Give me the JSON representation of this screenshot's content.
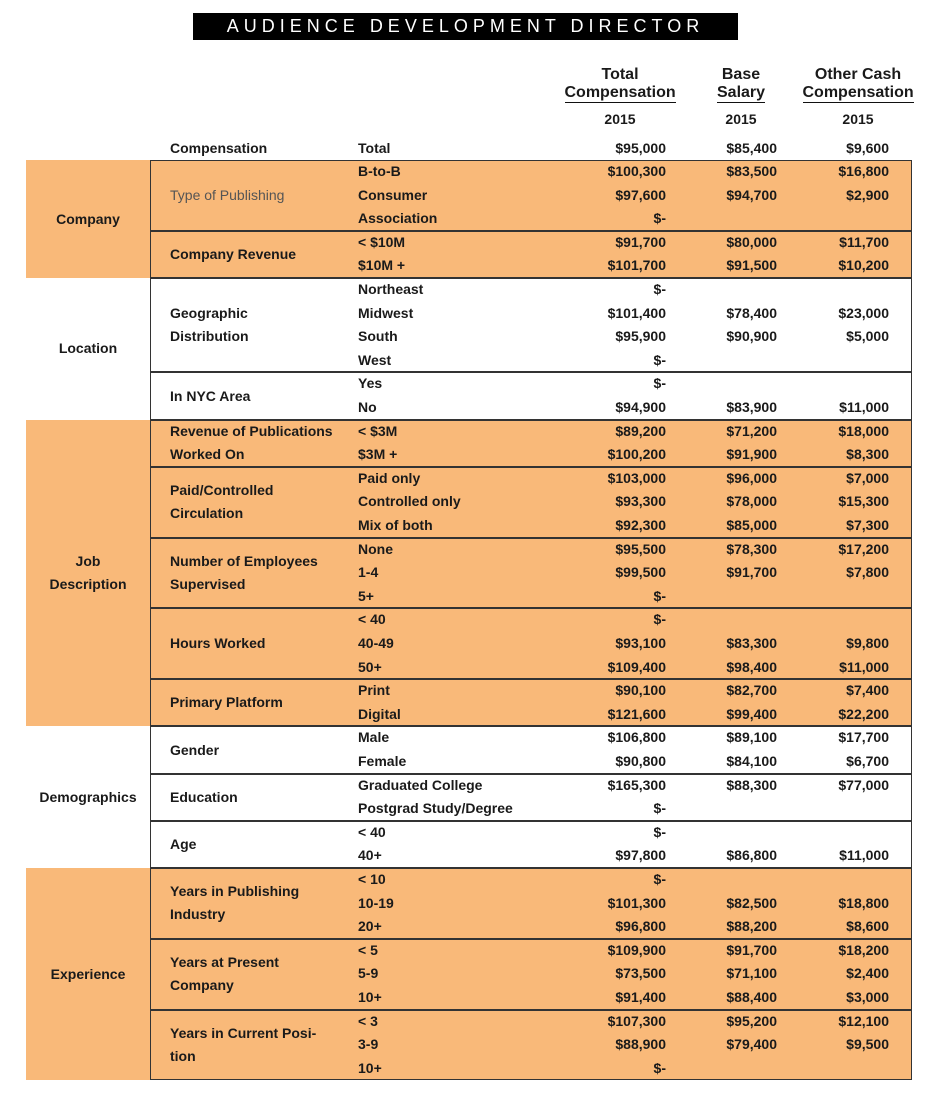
{
  "header": {
    "title": "AUDIENCE DEVELOPMENT DIRECTOR"
  },
  "columns": [
    {
      "name_lines": [
        "Total",
        "Compensation"
      ],
      "year": "2015"
    },
    {
      "name_lines": [
        "Base",
        "Salary"
      ],
      "year": "2015"
    },
    {
      "name_lines": [
        "Other Cash",
        "Compensation"
      ],
      "year": "2015"
    }
  ],
  "overall": {
    "category": "Compensation",
    "label": "Total",
    "cells": [
      "$95,000",
      "$85,400",
      "$9,600"
    ]
  },
  "sections": [
    {
      "label_lines": [
        "Company"
      ],
      "shaded": true,
      "groups": [
        {
          "label_lines": [
            "Type of Publishing"
          ],
          "muted": true,
          "rows": [
            {
              "label": "B-to-B",
              "cells": [
                "$100,300",
                "$83,500",
                "$16,800"
              ]
            },
            {
              "label": "Consumer",
              "cells": [
                "$97,600",
                "$94,700",
                "$2,900"
              ]
            },
            {
              "label": "Association",
              "cells": [
                "$-",
                null,
                null
              ]
            }
          ]
        },
        {
          "label_lines": [
            "Company Revenue"
          ],
          "rows": [
            {
              "label": "< $10M",
              "cells": [
                "$91,700",
                "$80,000",
                "$11,700"
              ]
            },
            {
              "label": "$10M +",
              "cells": [
                "$101,700",
                "$91,500",
                "$10,200"
              ]
            }
          ]
        }
      ]
    },
    {
      "label_lines": [
        "Location"
      ],
      "shaded": false,
      "groups": [
        {
          "label_lines": [
            "Geographic",
            "Distribution"
          ],
          "rows": [
            {
              "label": "Northeast",
              "cells": [
                "$-",
                null,
                null
              ]
            },
            {
              "label": "Midwest",
              "cells": [
                "$101,400",
                "$78,400",
                "$23,000"
              ]
            },
            {
              "label": "South",
              "cells": [
                "$95,900",
                "$90,900",
                "$5,000"
              ]
            },
            {
              "label": "West",
              "cells": [
                "$-",
                null,
                null
              ]
            }
          ]
        },
        {
          "label_lines": [
            "In NYC Area"
          ],
          "rows": [
            {
              "label": "Yes",
              "cells": [
                "$-",
                null,
                null
              ]
            },
            {
              "label": "No",
              "cells": [
                "$94,900",
                "$83,900",
                "$11,000"
              ]
            }
          ]
        }
      ]
    },
    {
      "label_lines": [
        "Job",
        "Description"
      ],
      "shaded": true,
      "groups": [
        {
          "label_lines": [
            "Revenue of Publications",
            "Worked On"
          ],
          "rows": [
            {
              "label": "< $3M",
              "cells": [
                "$89,200",
                "$71,200",
                "$18,000"
              ]
            },
            {
              "label": "$3M +",
              "cells": [
                "$100,200",
                "$91,900",
                "$8,300"
              ]
            }
          ]
        },
        {
          "label_lines": [
            "Paid/Controlled",
            "Circulation"
          ],
          "rows": [
            {
              "label": "Paid only",
              "cells": [
                "$103,000",
                "$96,000",
                "$7,000"
              ]
            },
            {
              "label": "Controlled only",
              "cells": [
                "$93,300",
                "$78,000",
                "$15,300"
              ]
            },
            {
              "label": "Mix of both",
              "cells": [
                "$92,300",
                "$85,000",
                "$7,300"
              ]
            }
          ]
        },
        {
          "label_lines": [
            "Number of Employees",
            "Supervised"
          ],
          "rows": [
            {
              "label": "None",
              "cells": [
                "$95,500",
                "$78,300",
                "$17,200"
              ]
            },
            {
              "label": "1-4",
              "cells": [
                "$99,500",
                "$91,700",
                "$7,800"
              ]
            },
            {
              "label": "5+",
              "cells": [
                "$-",
                null,
                null
              ]
            }
          ]
        },
        {
          "label_lines": [
            "Hours Worked"
          ],
          "rows": [
            {
              "label": "< 40",
              "cells": [
                "$-",
                null,
                null
              ]
            },
            {
              "label": "40-49",
              "cells": [
                "$93,100",
                "$83,300",
                "$9,800"
              ]
            },
            {
              "label": "50+",
              "cells": [
                "$109,400",
                "$98,400",
                "$11,000"
              ]
            }
          ]
        },
        {
          "label_lines": [
            "Primary Platform"
          ],
          "rows": [
            {
              "label": "Print",
              "cells": [
                "$90,100",
                "$82,700",
                "$7,400"
              ]
            },
            {
              "label": "Digital",
              "cells": [
                "$121,600",
                "$99,400",
                "$22,200"
              ]
            }
          ]
        }
      ]
    },
    {
      "label_lines": [
        "Demographics"
      ],
      "shaded": false,
      "groups": [
        {
          "label_lines": [
            "Gender"
          ],
          "rows": [
            {
              "label": "Male",
              "cells": [
                "$106,800",
                "$89,100",
                "$17,700"
              ]
            },
            {
              "label": "Female",
              "cells": [
                "$90,800",
                "$84,100",
                "$6,700"
              ]
            }
          ]
        },
        {
          "label_lines": [
            "Education"
          ],
          "rows": [
            {
              "label": "Graduated College",
              "cells": [
                "$165,300",
                "$88,300",
                "$77,000"
              ]
            },
            {
              "label": "Postgrad Study/Degree",
              "cells": [
                "$-",
                null,
                null
              ]
            }
          ]
        },
        {
          "label_lines": [
            "Age"
          ],
          "rows": [
            {
              "label": "< 40",
              "cells": [
                "$-",
                null,
                null
              ]
            },
            {
              "label": "40+",
              "cells": [
                "$97,800",
                "$86,800",
                "$11,000"
              ]
            }
          ]
        }
      ]
    },
    {
      "label_lines": [
        "Experience"
      ],
      "shaded": true,
      "groups": [
        {
          "label_lines": [
            "Years in Publishing",
            "Industry"
          ],
          "rows": [
            {
              "label": "< 10",
              "cells": [
                "$-",
                null,
                null
              ]
            },
            {
              "label": "10-19",
              "cells": [
                "$101,300",
                "$82,500",
                "$18,800"
              ]
            },
            {
              "label": "20+",
              "cells": [
                "$96,800",
                "$88,200",
                "$8,600"
              ]
            }
          ]
        },
        {
          "label_lines": [
            "Years at Present",
            "Company"
          ],
          "rows": [
            {
              "label": "< 5",
              "cells": [
                "$109,900",
                "$91,700",
                "$18,200"
              ]
            },
            {
              "label": "5-9",
              "cells": [
                "$73,500",
                "$71,100",
                "$2,400"
              ]
            },
            {
              "label": "10+",
              "cells": [
                "$91,400",
                "$88,400",
                "$3,000"
              ]
            }
          ]
        },
        {
          "label_lines": [
            "Years in Current Posi-",
            "tion"
          ],
          "rows": [
            {
              "label": "< 3",
              "cells": [
                "$107,300",
                "$95,200",
                "$12,100"
              ]
            },
            {
              "label": "3-9",
              "cells": [
                "$88,900",
                "$79,400",
                "$9,500"
              ]
            },
            {
              "label": "10+",
              "cells": [
                "$-",
                null,
                null
              ]
            }
          ]
        }
      ]
    }
  ]
}
